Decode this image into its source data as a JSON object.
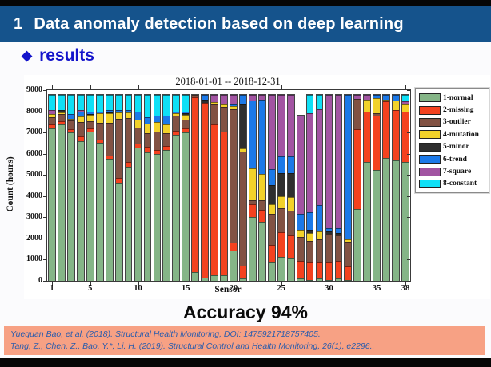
{
  "header": {
    "number": "1",
    "title": "Data anomaly detection based on deep learning"
  },
  "section": {
    "bullet": "◆",
    "label": "results"
  },
  "accuracy_label": "Accuracy 94%",
  "citations": [
    "Yuequan Bao, et al. (2018). Structural Health Monitoring, DOI: 1475921718757405.",
    "Tang, Z., Chen, Z., Bao, Y.*, Li. H. (2019). Structural Control and Health Monitoring, 26(1), e2296.."
  ],
  "colors": {
    "header_bg": "#15538c",
    "section_text": "#1313cb",
    "citation_bg": "#f7a184",
    "citation_text": "#2a5cac"
  },
  "chart_data": {
    "type": "bar",
    "stacked": true,
    "title": "2018-01-01 -- 2018-12-31",
    "xlabel": "Sensor",
    "ylabel": "Count (hours)",
    "ylim": [
      0,
      9000
    ],
    "ytick_step": 1000,
    "x_ticks": [
      1,
      5,
      10,
      15,
      20,
      25,
      30,
      35,
      38
    ],
    "legend_position": "right-top",
    "grid": false,
    "categories": [
      1,
      2,
      3,
      4,
      5,
      6,
      7,
      8,
      9,
      10,
      11,
      12,
      13,
      14,
      15,
      16,
      17,
      18,
      19,
      20,
      21,
      22,
      23,
      24,
      25,
      26,
      27,
      28,
      29,
      30,
      31,
      32,
      33,
      34,
      35,
      36,
      37,
      38
    ],
    "series": [
      {
        "name": "1-normal",
        "color": "#85b587",
        "values": [
          7200,
          7370,
          7000,
          6600,
          7050,
          6500,
          5750,
          4650,
          5400,
          6300,
          6060,
          6000,
          6180,
          6900,
          7000,
          420,
          160,
          250,
          250,
          1450,
          100,
          3000,
          2800,
          850,
          1130,
          1060,
          100,
          40,
          100,
          40,
          100,
          30,
          3390,
          5600,
          5230,
          5800,
          5680,
          5615
        ]
      },
      {
        "name": "2-missing",
        "color": "#f4421f",
        "values": [
          180,
          170,
          160,
          200,
          150,
          150,
          150,
          200,
          200,
          160,
          260,
          190,
          190,
          190,
          200,
          8230,
          8220,
          7150,
          6800,
          350,
          600,
          620,
          570,
          850,
          1150,
          1090,
          840,
          830,
          770,
          830,
          840,
          650,
          3780,
          2400,
          2550,
          2680,
          2370,
          2375
        ]
      },
      {
        "name": "3-outlier",
        "color": "#825243",
        "values": [
          350,
          320,
          400,
          700,
          320,
          800,
          1550,
          2800,
          2100,
          780,
          640,
          840,
          580,
          710,
          390,
          110,
          0,
          950,
          1150,
          6300,
          5400,
          180,
          450,
          1450,
          1160,
          1150,
          1150,
          1030,
          1090,
          1350,
          1210,
          1150,
          1430,
          0,
          130,
          0,
          0,
          0
        ]
      },
      {
        "name": "4-mutation",
        "color": "#f2d22a",
        "values": [
          160,
          90,
          100,
          250,
          300,
          450,
          450,
          300,
          250,
          350,
          450,
          450,
          450,
          120,
          260,
          0,
          0,
          100,
          150,
          150,
          150,
          1500,
          1220,
          480,
          570,
          640,
          320,
          380,
          390,
          0,
          0,
          120,
          0,
          560,
          700,
          80,
          450,
          380
        ]
      },
      {
        "name": "5-minor",
        "color": "#2e2e2e",
        "values": [
          0,
          100,
          0,
          0,
          50,
          0,
          50,
          0,
          0,
          0,
          0,
          0,
          0,
          0,
          60,
          0,
          180,
          0,
          0,
          0,
          2100,
          0,
          0,
          900,
          1090,
          1150,
          0,
          130,
          0,
          100,
          120,
          0,
          0,
          0,
          0,
          0,
          0,
          0
        ]
      },
      {
        "name": "6-trend",
        "color": "#1c79e8",
        "values": [
          0,
          0,
          230,
          250,
          130,
          100,
          100,
          100,
          100,
          400,
          320,
          320,
          390,
          80,
          90,
          0,
          200,
          0,
          0,
          100,
          410,
          3210,
          3520,
          760,
          770,
          770,
          770,
          830,
          1210,
          150,
          200,
          6810,
          0,
          0,
          150,
          200,
          260,
          0
        ]
      },
      {
        "name": "7-square",
        "color": "#a254a2",
        "values": [
          175,
          0,
          0,
          50,
          0,
          0,
          0,
          0,
          0,
          0,
          0,
          0,
          0,
          0,
          0,
          0,
          0,
          310,
          410,
          410,
          0,
          250,
          200,
          3470,
          2890,
          2900,
          4610,
          4680,
          4550,
          6290,
          6290,
          0,
          160,
          200,
          0,
          0,
          0,
          100
        ]
      },
      {
        "name": "8-constant",
        "color": "#0fe0f6",
        "values": [
          695,
          710,
          870,
          710,
          760,
          760,
          710,
          710,
          710,
          770,
          1030,
          960,
          970,
          760,
          760,
          0,
          0,
          0,
          0,
          0,
          0,
          0,
          0,
          0,
          0,
          0,
          0,
          840,
          650,
          0,
          0,
          0,
          0,
          0,
          0,
          0,
          0,
          290
        ]
      }
    ]
  }
}
